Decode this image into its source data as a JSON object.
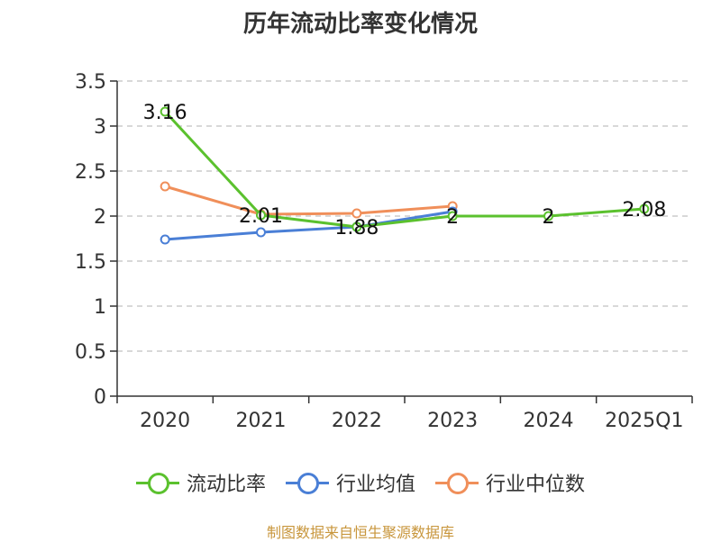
{
  "chart_data": {
    "type": "line",
    "title": "历年流动比率变化情况",
    "categories": [
      "2020",
      "2021",
      "2022",
      "2023",
      "2024",
      "2025Q1"
    ],
    "ylim": [
      0,
      3.5
    ],
    "yticks": [
      "0",
      "0.5",
      "1",
      "1.5",
      "2",
      "2.5",
      "3",
      "3.5"
    ],
    "grid": true,
    "legend_position": "bottom",
    "series": [
      {
        "name": "流动比率",
        "color": "#5bc12e",
        "values": [
          3.16,
          2.01,
          1.88,
          2.0,
          2.0,
          2.08
        ],
        "labels": [
          "3.16",
          "2.01",
          "1.88",
          "2",
          "2",
          "2.08"
        ]
      },
      {
        "name": "行业均值",
        "color": "#4a7fd6",
        "values": [
          1.74,
          1.82,
          1.88,
          2.05,
          null,
          null
        ]
      },
      {
        "name": "行业中位数",
        "color": "#f08f5a",
        "values": [
          2.33,
          2.02,
          2.03,
          2.11,
          null,
          null
        ]
      }
    ],
    "source": "制图数据来自恒生聚源数据库"
  }
}
